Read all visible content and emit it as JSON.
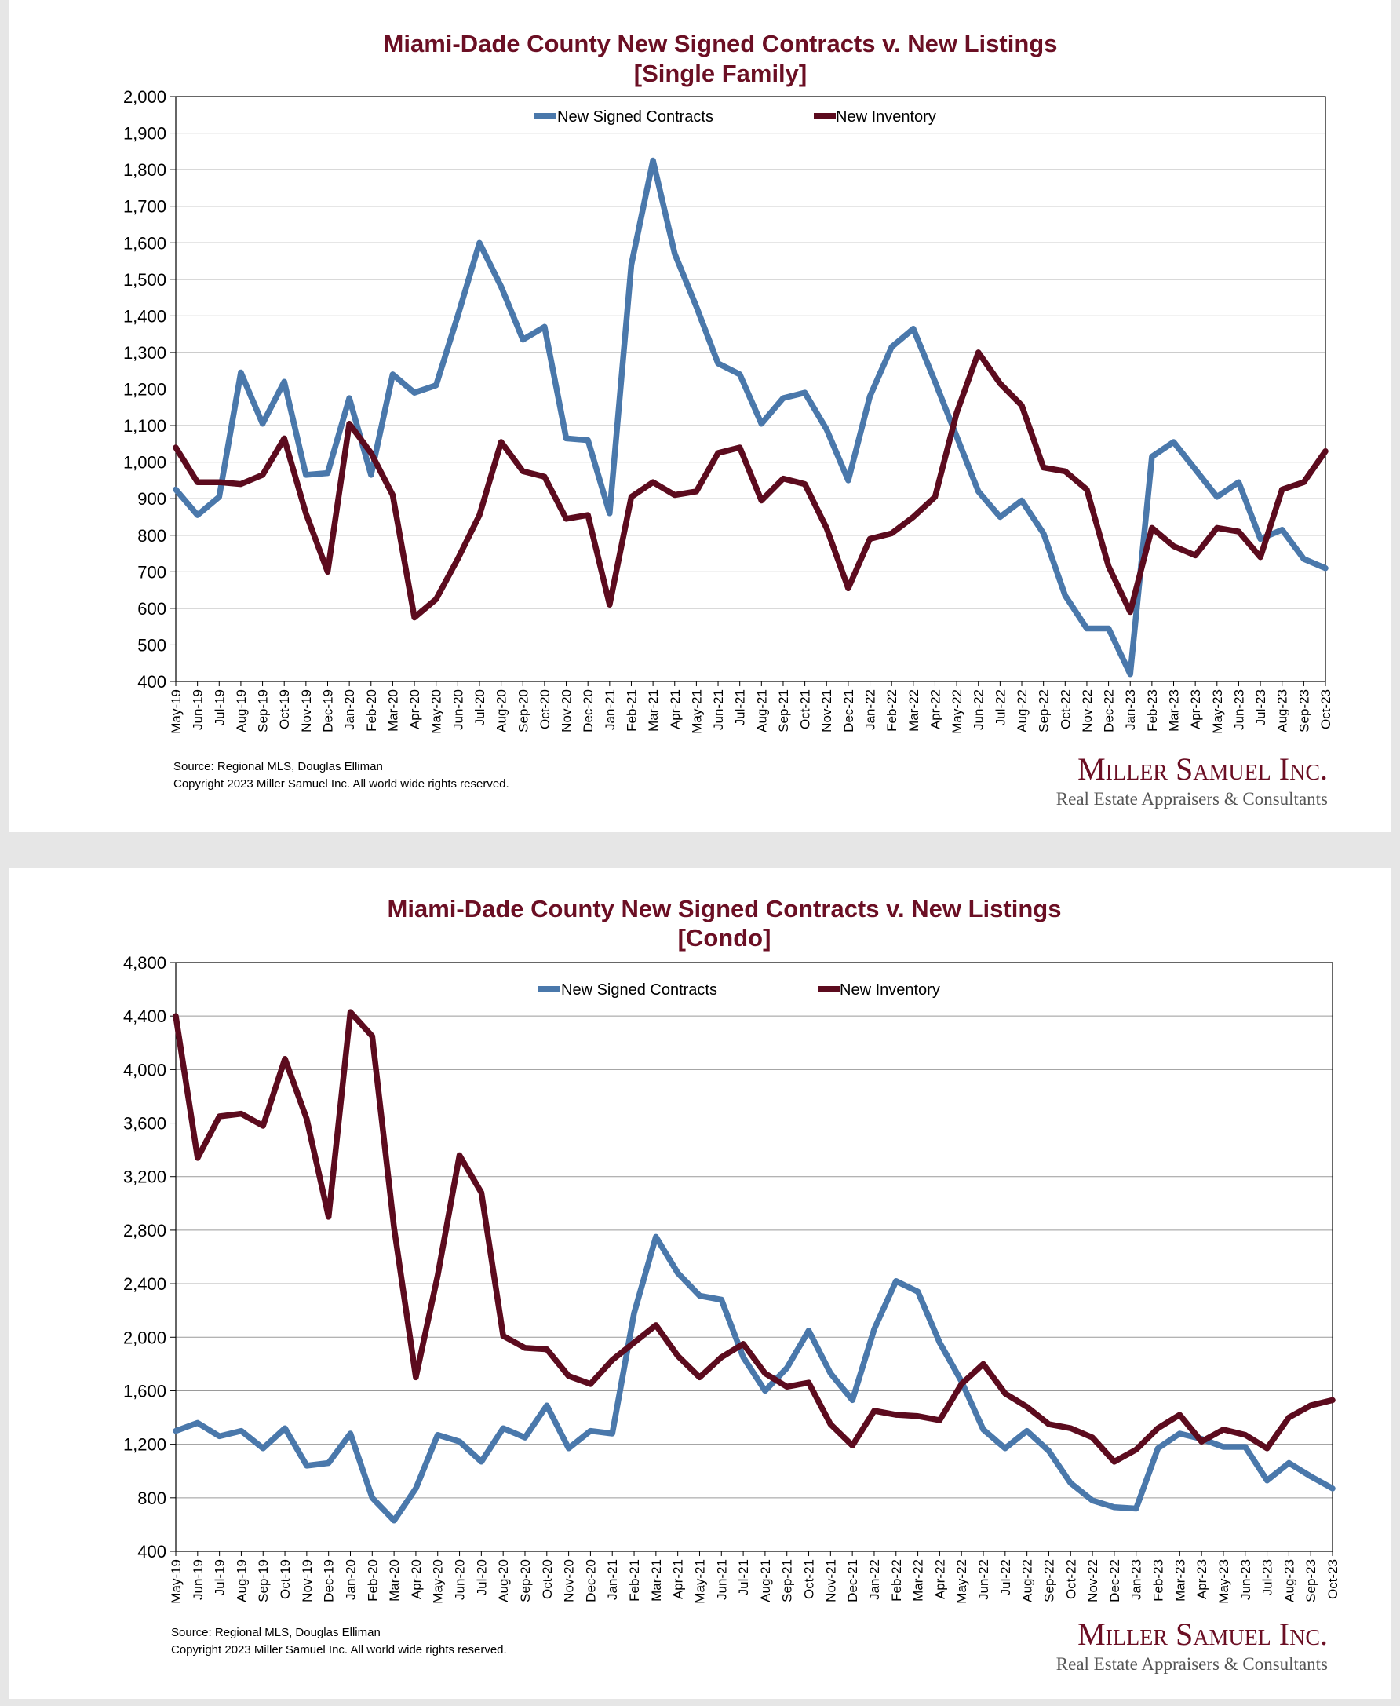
{
  "chart_data": [
    {
      "type": "line",
      "title": "Miami-Dade County New Signed Contracts v. New Listings",
      "subtitle": "[Single Family]",
      "ylim": [
        400,
        2000
      ],
      "yticks": [
        400,
        500,
        600,
        700,
        800,
        900,
        1000,
        1100,
        1200,
        1300,
        1400,
        1500,
        1600,
        1700,
        1800,
        1900,
        2000
      ],
      "ytick_labels": [
        "400",
        "500",
        "600",
        "700",
        "800",
        "900",
        "1,000",
        "1,100",
        "1,200",
        "1,300",
        "1,400",
        "1,500",
        "1,600",
        "1,700",
        "1,800",
        "1,900",
        "2,000"
      ],
      "grid": true,
      "legend_position": "top-center",
      "x": [
        "May-19",
        "Jun-19",
        "Jul-19",
        "Aug-19",
        "Sep-19",
        "Oct-19",
        "Nov-19",
        "Dec-19",
        "Jan-20",
        "Feb-20",
        "Mar-20",
        "Apr-20",
        "May-20",
        "Jun-20",
        "Jul-20",
        "Aug-20",
        "Sep-20",
        "Oct-20",
        "Nov-20",
        "Dec-20",
        "Jan-21",
        "Feb-21",
        "Mar-21",
        "Apr-21",
        "May-21",
        "Jun-21",
        "Jul-21",
        "Aug-21",
        "Sep-21",
        "Oct-21",
        "Nov-21",
        "Dec-21",
        "Jan-22",
        "Feb-22",
        "Mar-22",
        "Apr-22",
        "May-22",
        "Jun-22",
        "Jul-22",
        "Aug-22",
        "Sep-22",
        "Oct-22",
        "Nov-22",
        "Dec-22",
        "Jan-23",
        "Feb-23",
        "Mar-23",
        "Apr-23",
        "May-23",
        "Jun-23",
        "Jul-23",
        "Aug-23",
        "Sep-23",
        "Oct-23"
      ],
      "series": [
        {
          "name": "New Signed Contracts",
          "color": "#4a78ab",
          "values": [
            925,
            855,
            905,
            1245,
            1105,
            1220,
            965,
            970,
            1175,
            965,
            1240,
            1190,
            1210,
            1400,
            1600,
            1480,
            1335,
            1370,
            1065,
            1060,
            860,
            1540,
            1825,
            1570,
            1425,
            1270,
            1240,
            1105,
            1175,
            1190,
            1090,
            950,
            1180,
            1315,
            1365,
            1220,
            1070,
            920,
            850,
            895,
            805,
            635,
            545,
            545,
            420,
            1015,
            1055,
            980,
            905,
            945,
            790,
            815,
            735,
            710
          ]
        },
        {
          "name": "New Inventory",
          "color": "#5c0b1e",
          "values": [
            1040,
            945,
            945,
            940,
            965,
            1065,
            860,
            700,
            1105,
            1025,
            910,
            575,
            625,
            735,
            855,
            1055,
            975,
            960,
            845,
            855,
            610,
            905,
            945,
            910,
            920,
            1025,
            1040,
            895,
            955,
            940,
            820,
            655,
            790,
            805,
            850,
            905,
            1135,
            1300,
            1215,
            1155,
            985,
            975,
            925,
            715,
            590,
            820,
            770,
            745,
            820,
            810,
            740,
            925,
            945,
            1030
          ]
        }
      ]
    },
    {
      "type": "line",
      "title": "Miami-Dade County New Signed Contracts v. New Listings",
      "subtitle": "[Condo]",
      "ylim": [
        400,
        4800
      ],
      "yticks": [
        400,
        800,
        1200,
        1600,
        2000,
        2400,
        2800,
        3200,
        3600,
        4000,
        4400,
        4800
      ],
      "ytick_labels": [
        "400",
        "800",
        "1,200",
        "1,600",
        "2,000",
        "2,400",
        "2,800",
        "3,200",
        "3,600",
        "4,000",
        "4,400",
        "4,800"
      ],
      "grid": true,
      "legend_position": "top-center",
      "x": [
        "May-19",
        "Jun-19",
        "Jul-19",
        "Aug-19",
        "Sep-19",
        "Oct-19",
        "Nov-19",
        "Dec-19",
        "Jan-20",
        "Feb-20",
        "Mar-20",
        "Apr-20",
        "May-20",
        "Jun-20",
        "Jul-20",
        "Aug-20",
        "Sep-20",
        "Oct-20",
        "Nov-20",
        "Dec-20",
        "Jan-21",
        "Feb-21",
        "Mar-21",
        "Apr-21",
        "May-21",
        "Jun-21",
        "Jul-21",
        "Aug-21",
        "Sep-21",
        "Oct-21",
        "Nov-21",
        "Dec-21",
        "Jan-22",
        "Feb-22",
        "Mar-22",
        "Apr-22",
        "May-22",
        "Jun-22",
        "Jul-22",
        "Aug-22",
        "Sep-22",
        "Oct-22",
        "Nov-22",
        "Dec-22",
        "Jan-23",
        "Feb-23",
        "Mar-23",
        "Apr-23",
        "May-23",
        "Jun-23",
        "Jul-23",
        "Aug-23",
        "Sep-23",
        "Oct-23"
      ],
      "series": [
        {
          "name": "New Signed Contracts",
          "color": "#4a78ab",
          "values": [
            1300,
            1360,
            1260,
            1300,
            1170,
            1320,
            1040,
            1060,
            1280,
            800,
            630,
            870,
            1270,
            1220,
            1070,
            1320,
            1250,
            1490,
            1170,
            1300,
            1280,
            2180,
            2750,
            2480,
            2310,
            2280,
            1850,
            1600,
            1770,
            2050,
            1730,
            1530,
            2060,
            2420,
            2340,
            1960,
            1670,
            1310,
            1170,
            1300,
            1150,
            910,
            780,
            730,
            720,
            1170,
            1280,
            1240,
            1180,
            1180,
            930,
            1060,
            960,
            870
          ]
        },
        {
          "name": "New Inventory",
          "color": "#5c0b1e",
          "values": [
            4400,
            3340,
            3650,
            3670,
            3580,
            4080,
            3630,
            2900,
            4430,
            4250,
            2820,
            1700,
            2460,
            3360,
            3080,
            2010,
            1920,
            1910,
            1710,
            1650,
            1830,
            1960,
            2090,
            1860,
            1700,
            1850,
            1950,
            1730,
            1630,
            1660,
            1350,
            1190,
            1450,
            1420,
            1410,
            1380,
            1650,
            1800,
            1580,
            1480,
            1350,
            1320,
            1250,
            1070,
            1160,
            1320,
            1420,
            1220,
            1310,
            1270,
            1170,
            1400,
            1490,
            1530
          ]
        }
      ]
    }
  ],
  "footer": {
    "source": "Source: Regional MLS, Douglas Elliman",
    "copyright": "Copyright 2023 Miller Samuel Inc.  All world wide rights reserved.",
    "brand_name": "Miller Samuel Inc.",
    "brand_tagline": "Real Estate Appraisers & Consultants"
  }
}
